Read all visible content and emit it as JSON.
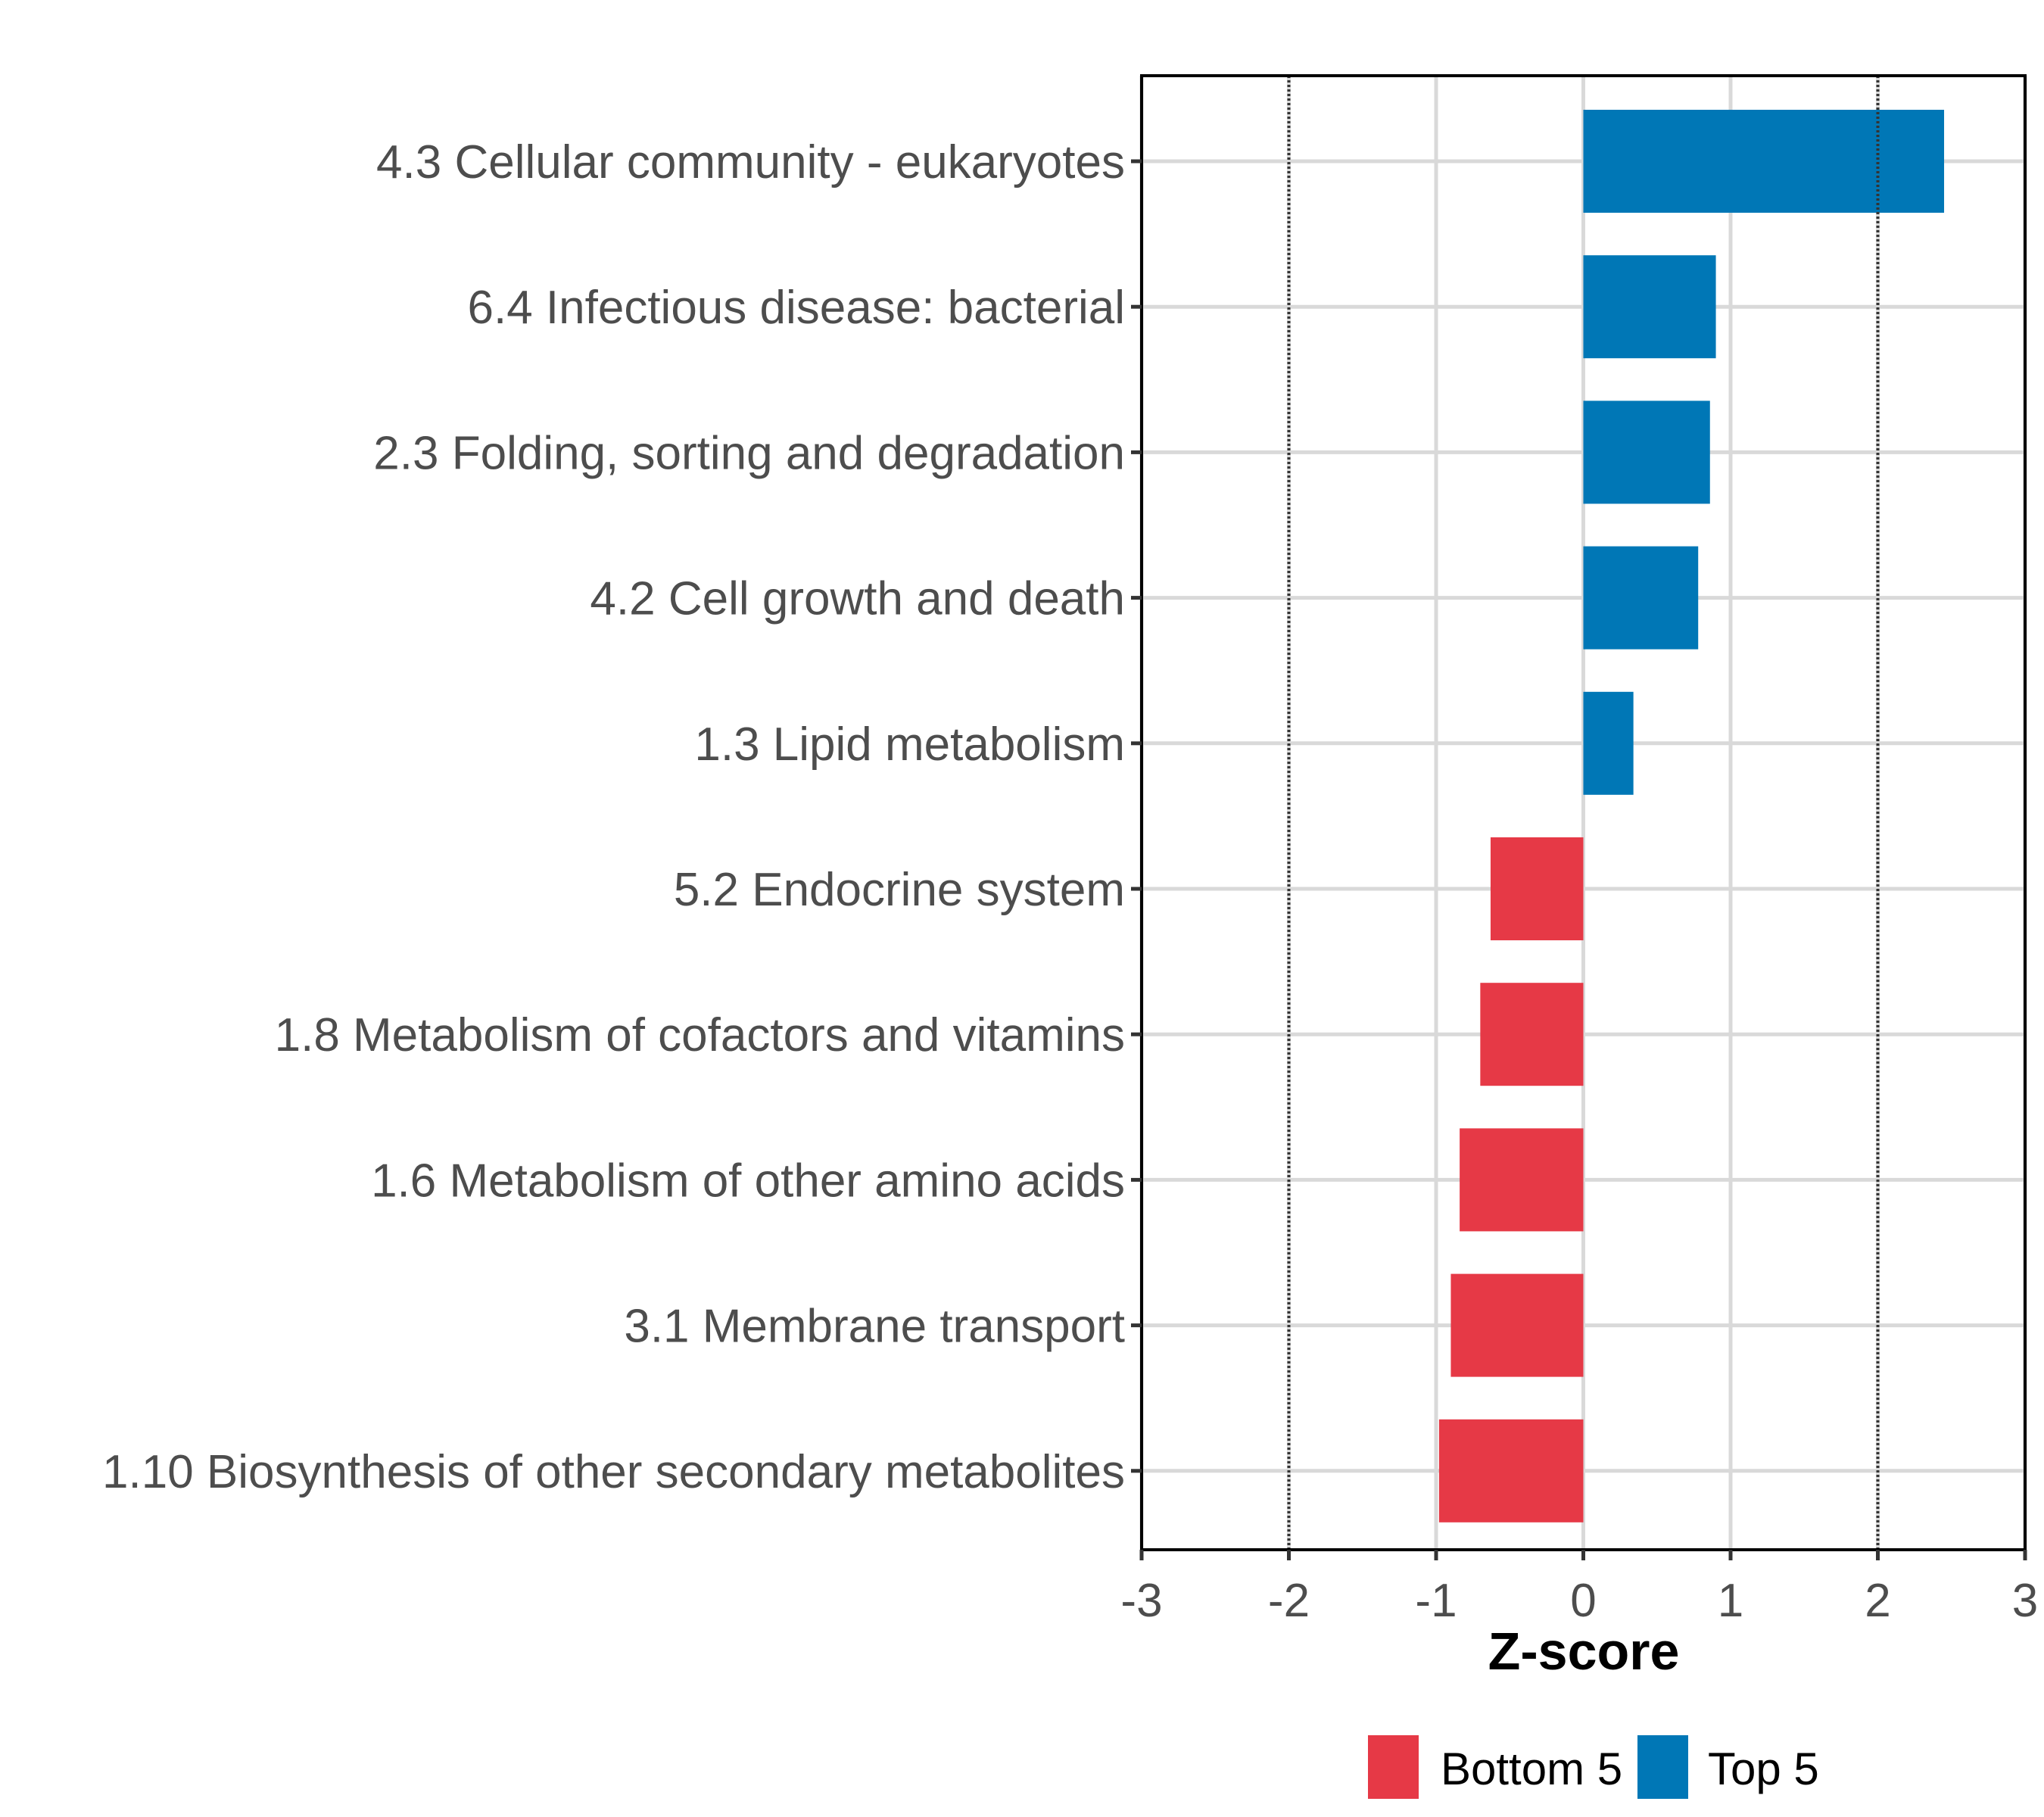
{
  "chart_data": {
    "type": "bar",
    "orientation": "horizontal",
    "title": "",
    "xlabel": "Z-score",
    "ylabel": "",
    "xlim": [
      -3,
      3
    ],
    "xticks": [
      -3,
      -2,
      -1,
      0,
      1,
      2,
      3
    ],
    "xtick_labels": [
      "-3",
      "-2",
      "-1",
      "0",
      "1",
      "2",
      "3"
    ],
    "reference_lines": [
      -2,
      2
    ],
    "grid": true,
    "categories": [
      "4.3 Cellular community - eukaryotes",
      "6.4 Infectious disease: bacterial",
      "2.3 Folding, sorting and degradation",
      "4.2 Cell growth and death",
      "1.3 Lipid metabolism",
      "5.2 Endocrine system",
      "1.8 Metabolism of cofactors and vitamins",
      "1.6 Metabolism of other amino acids",
      "3.1 Membrane transport",
      "1.10 Biosynthesis of other secondary metabolites"
    ],
    "values": [
      2.45,
      0.9,
      0.86,
      0.78,
      0.34,
      -0.63,
      -0.7,
      -0.84,
      -0.9,
      -0.98
    ],
    "groups": [
      "Top 5",
      "Top 5",
      "Top 5",
      "Top 5",
      "Top 5",
      "Bottom 5",
      "Bottom 5",
      "Bottom 5",
      "Bottom 5",
      "Bottom 5"
    ],
    "legend": {
      "position": "bottom",
      "entries": [
        {
          "label": "Bottom 5",
          "color": "#E63946"
        },
        {
          "label": "Top 5",
          "color": "#0077B6"
        }
      ]
    },
    "colors": {
      "Top 5": "#0077B6",
      "Bottom 5": "#E63946"
    }
  }
}
